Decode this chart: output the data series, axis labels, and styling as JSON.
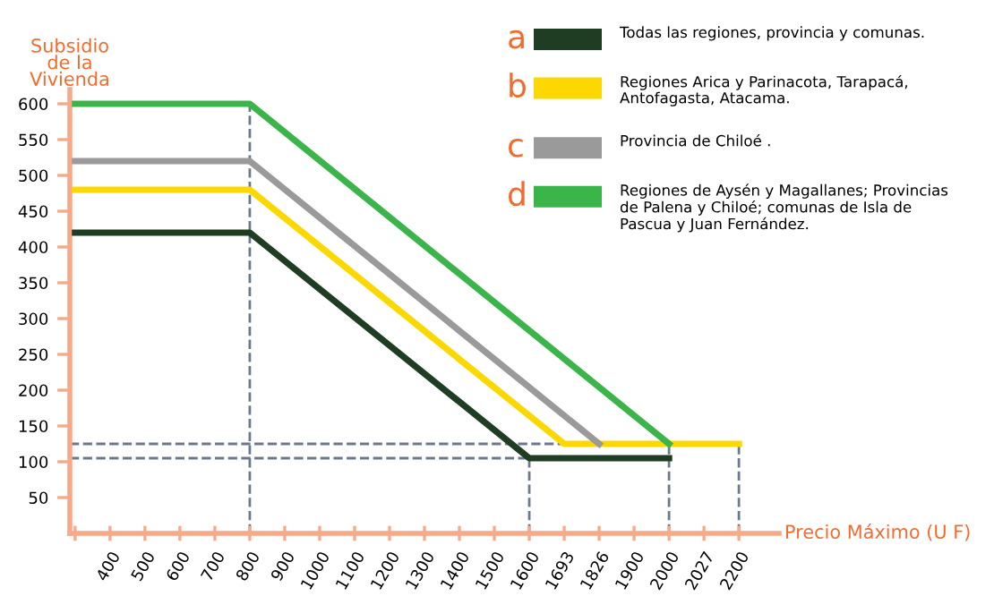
{
  "chart_data": {
    "type": "line",
    "ylabel": "Subsidio\nde la\nVivienda",
    "xlabel": "Precio Máximo (U F)",
    "categories": [
      null,
      "400",
      "500",
      "600",
      "700",
      "800",
      "900",
      "1000",
      "1100",
      "1200",
      "1300",
      "1400",
      "1500",
      "1600",
      "1693",
      "1826",
      "1900",
      "2000",
      "2027",
      "2200"
    ],
    "ylim": [
      0,
      620
    ],
    "yticks": [
      50,
      100,
      150,
      200,
      250,
      300,
      350,
      400,
      450,
      500,
      550,
      600
    ],
    "series": [
      {
        "name": "Todas las regiones, provincia y comunas.",
        "color": "#1e3d22",
        "values": [
          420,
          null,
          null,
          null,
          null,
          420,
          null,
          null,
          null,
          null,
          null,
          null,
          null,
          105,
          null,
          null,
          null,
          105,
          null,
          null
        ]
      },
      {
        "name": "Regiones Arica y Parinacota, Tarapacá, Antofagasta, Atacama.",
        "color": "#fcd800",
        "values": [
          480,
          null,
          null,
          null,
          null,
          480,
          null,
          null,
          null,
          null,
          null,
          null,
          null,
          null,
          125,
          null,
          null,
          null,
          null,
          125
        ]
      },
      {
        "name": "Provincia de Chiloé .",
        "color": "#9a9a9a",
        "values": [
          520,
          null,
          null,
          null,
          null,
          520,
          null,
          null,
          null,
          null,
          null,
          null,
          null,
          null,
          null,
          125,
          null,
          null,
          null,
          null
        ]
      },
      {
        "name": "Regiones de Aysén y Magallanes; Provincias de Palena y Chiloé; comunas de Isla de Pascua y Juan Fernández.",
        "color": "#3bb54a",
        "values": [
          600,
          null,
          null,
          null,
          null,
          600,
          null,
          null,
          null,
          null,
          null,
          null,
          null,
          null,
          null,
          null,
          null,
          125,
          null,
          null
        ]
      }
    ],
    "annotations": [
      "a",
      "b",
      "c",
      "d"
    ],
    "ref_lines": [
      {
        "axis": "y",
        "value": 125,
        "color": "#6a7a8c",
        "line_style": "dashed"
      },
      {
        "axis": "y",
        "value": 105,
        "color": "#6a7a8c",
        "line_style": "dashed"
      },
      {
        "axis": "x",
        "value": "800",
        "color": "#6a7a8c",
        "line_style": "dashed"
      },
      {
        "axis": "x",
        "value": "1600",
        "color": "#6a7a8c",
        "line_style": "dashed"
      },
      {
        "axis": "x",
        "value": "2000",
        "color": "#6a7a8c",
        "line_style": "dashed"
      },
      {
        "axis": "x",
        "value": "2200",
        "color": "#6a7a8c",
        "line_style": "dashed"
      }
    ],
    "legend": "top right",
    "grid": false,
    "marker": "none",
    "line_style": "solid"
  }
}
